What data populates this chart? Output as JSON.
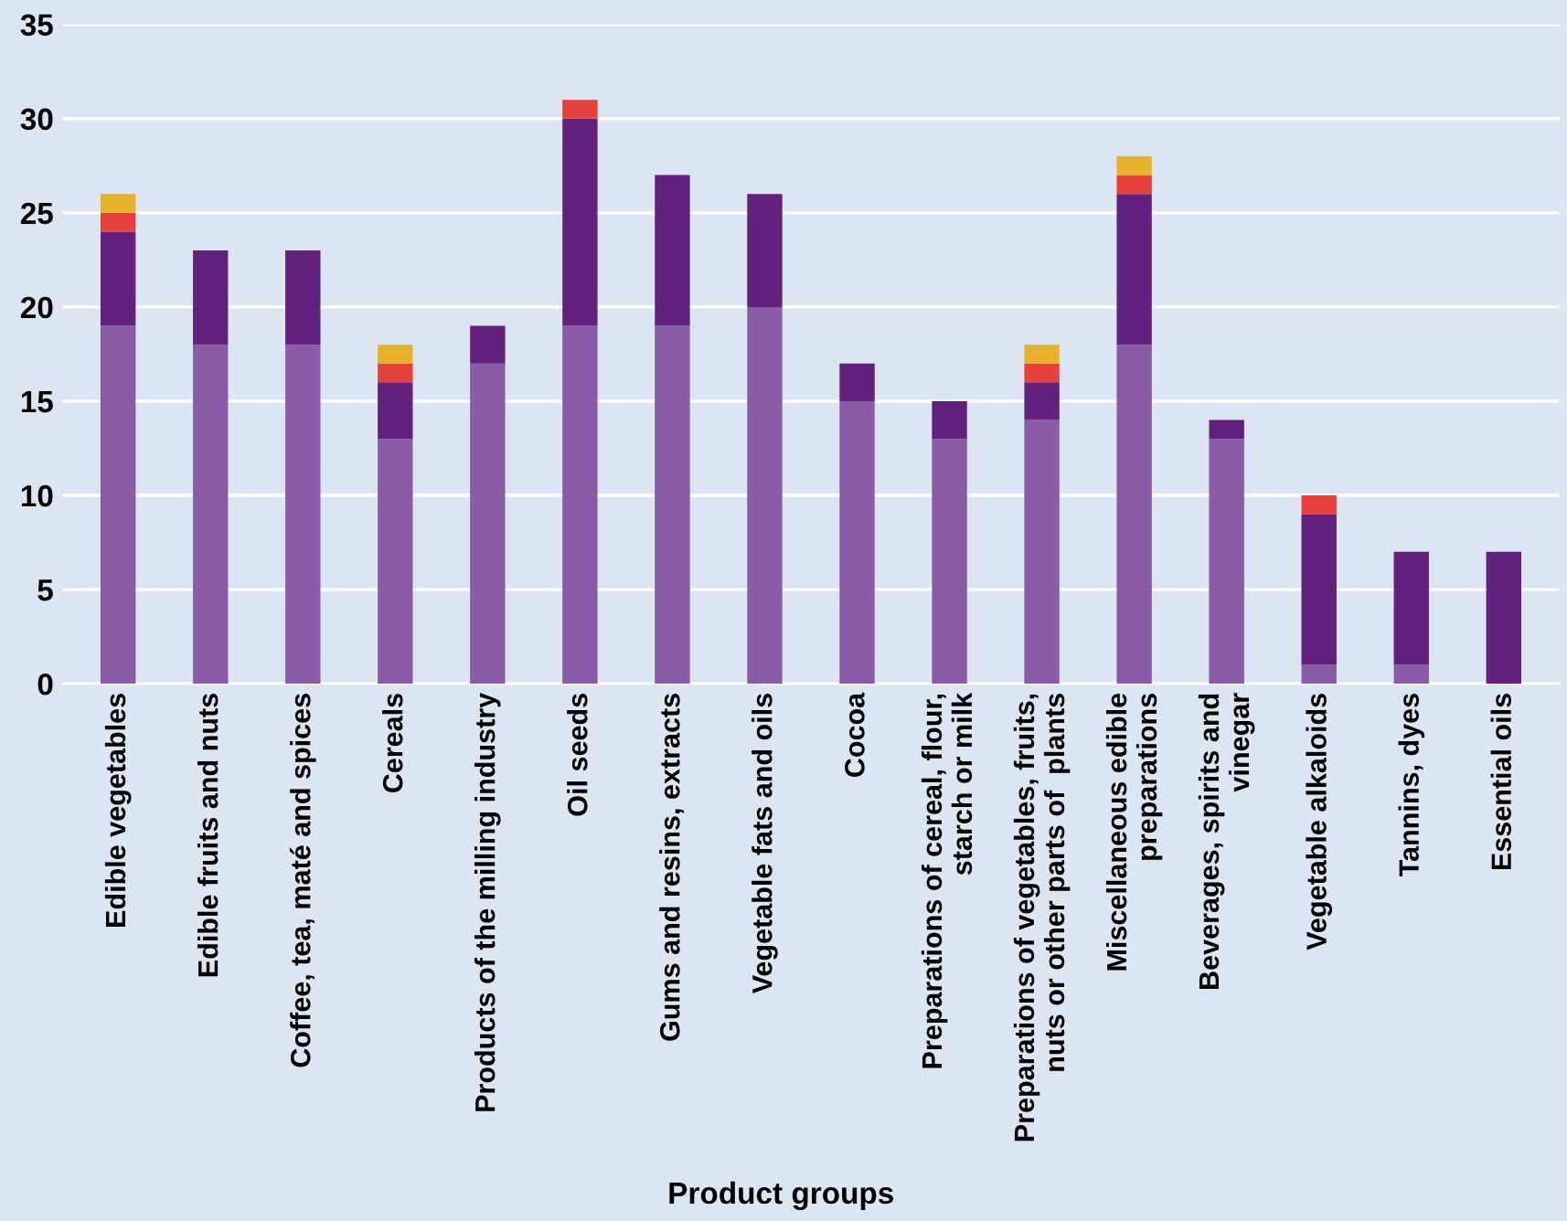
{
  "chart_data": {
    "type": "bar",
    "stacked": true,
    "xlabel": "Product groups",
    "categories": [
      "Edible vegetables",
      "Edible fruits and nuts",
      "Coffee, tea, maté and spices",
      "Cereals",
      "Products of the milling industry",
      "Oil seeds",
      "Gums and resins, extracts",
      "Vegetable fats and oils",
      "Cocoa",
      "Preparations of cereal, flour,\nstarch or milk",
      "Preparations of vegetables, fruits,\nnuts or other parts of  plants",
      "Miscellaneous edible\npreparations",
      "Beverages, spirits and\nvinegar",
      "Vegetable alkaloids",
      "Tannins, dyes",
      "Essential oils"
    ],
    "series": [
      {
        "color": "#8a5ba6",
        "values": [
          19,
          18,
          18,
          13,
          17,
          19,
          19,
          20,
          15,
          13,
          14,
          18,
          13,
          1,
          1,
          null
        ]
      },
      {
        "color": "#63217e",
        "values": [
          5,
          5,
          5,
          3,
          2,
          11,
          8,
          6,
          2,
          2,
          2,
          8,
          1,
          8,
          6,
          7
        ]
      },
      {
        "color": "#e8403b",
        "values": [
          1,
          null,
          null,
          1,
          null,
          1,
          null,
          null,
          null,
          null,
          1,
          1,
          null,
          1,
          null,
          null
        ]
      },
      {
        "color": "#e6b22b",
        "values": [
          1,
          null,
          null,
          1,
          null,
          null,
          null,
          null,
          null,
          null,
          1,
          1,
          null,
          null,
          null,
          null
        ]
      }
    ],
    "ylim": [
      0,
      35
    ],
    "yticks": [
      0,
      5,
      10,
      15,
      20,
      25,
      30,
      35
    ],
    "grid": "y"
  }
}
